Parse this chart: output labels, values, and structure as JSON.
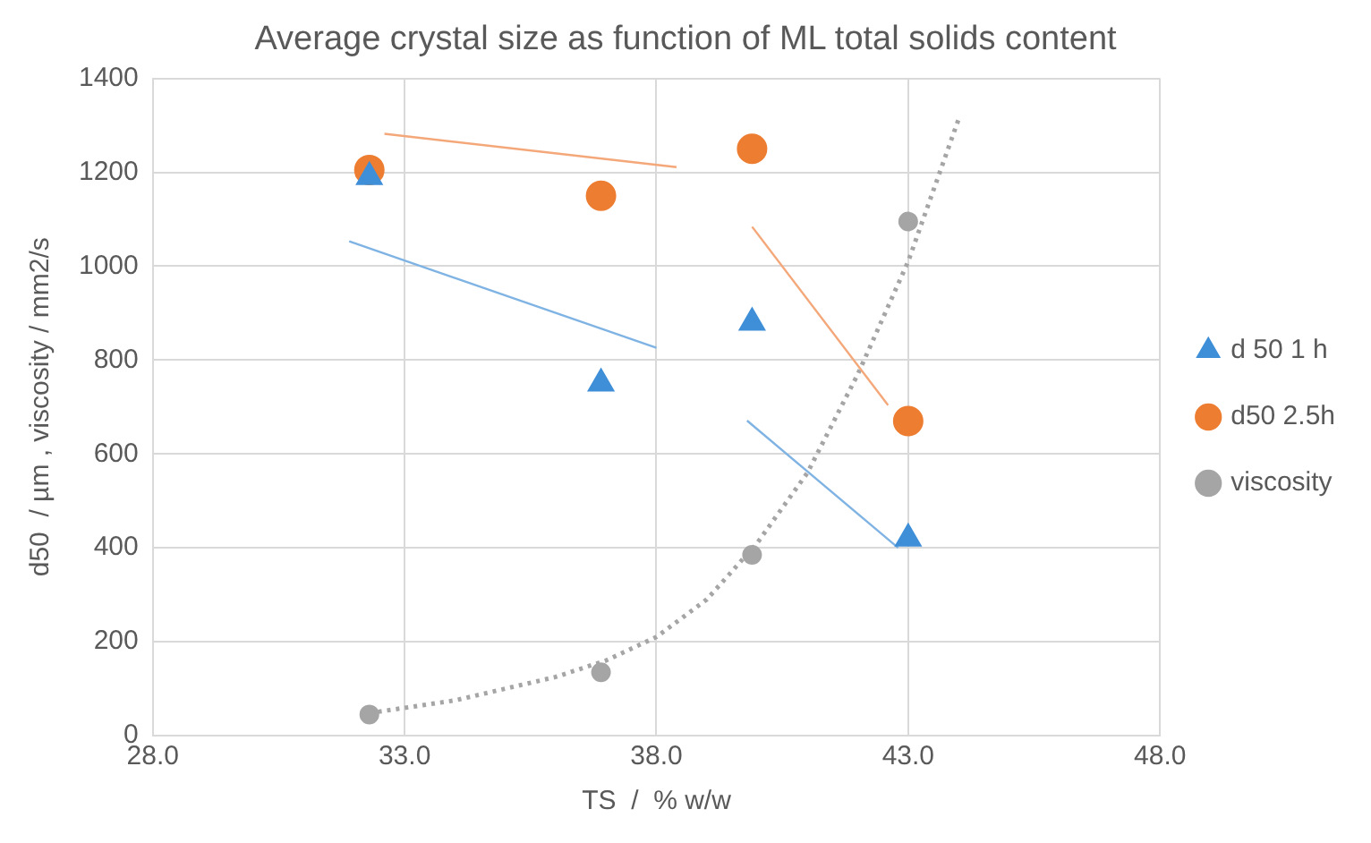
{
  "chart_data": {
    "type": "scatter",
    "title": "Average crystal size as function of ML total solids content",
    "xlabel": "TS  /  % w/w",
    "ylabel": "d50  / µm , viscosity / mm2/s",
    "series": [
      {
        "name": "d 50 1 h",
        "type": "scatter",
        "marker": "triangle",
        "color": "#3f8fd8",
        "x": [
          32.3,
          36.9,
          39.9,
          43.0
        ],
        "values": [
          1190,
          750,
          880,
          420
        ]
      },
      {
        "name": "d50 2.5h",
        "type": "scatter",
        "marker": "circle",
        "color": "#ed7d31",
        "x": [
          32.3,
          36.9,
          39.9,
          43.0
        ],
        "values": [
          1205,
          1150,
          1250,
          670
        ]
      },
      {
        "name": "viscosity",
        "type": "scatter",
        "marker": "circle",
        "color": "#a5a5a5",
        "x": [
          32.3,
          36.9,
          39.9,
          43.0
        ],
        "values": [
          45,
          135,
          385,
          1095
        ]
      },
      {
        "type": "line",
        "marker": "none",
        "line_style": "solid",
        "color": "#f4a87a",
        "x": [
          32.6,
          38.4
        ],
        "values": [
          1282,
          1211
        ]
      },
      {
        "type": "line",
        "marker": "none",
        "line_style": "solid",
        "color": "#7fb3e3",
        "x": [
          31.9,
          38.0
        ],
        "values": [
          1053,
          826
        ]
      },
      {
        "type": "line",
        "marker": "none",
        "line_style": "solid",
        "color": "#f4a87a",
        "x": [
          39.9,
          42.6
        ],
        "values": [
          1084,
          704
        ]
      },
      {
        "type": "line",
        "marker": "none",
        "line_style": "solid",
        "color": "#7fb3e3",
        "x": [
          39.8,
          42.8
        ],
        "values": [
          671,
          400
        ]
      },
      {
        "type": "line",
        "marker": "none",
        "line_style": "dotted",
        "color": "#a5a5a5",
        "x": [
          32.3,
          34,
          36,
          37,
          38,
          39,
          40,
          41,
          42,
          43,
          44
        ],
        "values": [
          48,
          75,
          125,
          160,
          210,
          290,
          410,
          560,
          770,
          1010,
          1313
        ]
      }
    ],
    "xlim": [
      28,
      48
    ],
    "xticks": [
      {
        "value": 28,
        "label": "28.0"
      },
      {
        "value": 33,
        "label": "33.0"
      },
      {
        "value": 38,
        "label": "38.0"
      },
      {
        "value": 43,
        "label": "43.0"
      },
      {
        "value": 48,
        "label": "48.0"
      }
    ],
    "ylim": [
      0,
      1400
    ],
    "yticks": [
      0,
      200,
      400,
      600,
      800,
      1000,
      1200,
      1400
    ],
    "grid": true,
    "legend": "right"
  }
}
